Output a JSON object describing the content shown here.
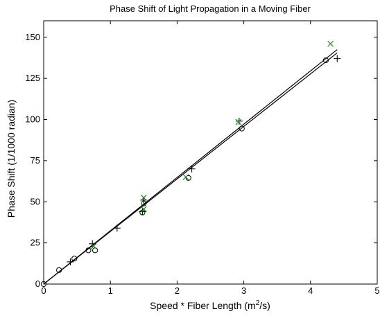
{
  "chart_data": {
    "type": "scatter",
    "title": "Phase Shift of Light Propagation in a Moving Fiber",
    "xlabel_main": "Speed * Fiber Length (m",
    "xlabel_sup": "2",
    "xlabel_tail": "/s)",
    "ylabel": "Phase Shift (1/1000 radian)",
    "xlim": [
      0,
      5
    ],
    "ylim": [
      0,
      160
    ],
    "xticks": [
      0,
      1,
      2,
      3,
      4,
      5
    ],
    "yticks": [
      0,
      25,
      50,
      75,
      100,
      125,
      150
    ],
    "grid": false,
    "series": [
      {
        "marker": "circle",
        "color": "#000000",
        "points": [
          [
            0,
            0
          ],
          [
            0.23,
            8.5
          ],
          [
            0.46,
            15.5
          ],
          [
            0.67,
            20.5
          ],
          [
            0.77,
            20.5
          ],
          [
            1.48,
            43.5
          ],
          [
            1.5,
            49
          ],
          [
            2.17,
            64.5
          ],
          [
            2.97,
            94.5
          ],
          [
            4.23,
            136
          ]
        ]
      },
      {
        "marker": "plus",
        "color": "#000000",
        "points": [
          [
            0.4,
            13.5
          ],
          [
            0.73,
            24.5
          ],
          [
            1.1,
            34
          ],
          [
            1.48,
            44
          ],
          [
            1.5,
            51
          ],
          [
            2.22,
            70
          ],
          [
            2.93,
            99
          ],
          [
            4.4,
            137
          ]
        ]
      },
      {
        "marker": "x",
        "color": "#1a8a1a",
        "points": [
          [
            0.75,
            23
          ],
          [
            1.5,
            45.5
          ],
          [
            1.5,
            52.5
          ],
          [
            2.13,
            65
          ],
          [
            2.92,
            98.5
          ],
          [
            4.3,
            146
          ]
        ]
      }
    ],
    "fit_lines": [
      {
        "color": "#000000",
        "x": [
          0,
          4.4
        ],
        "y": [
          0,
          142.5
        ]
      },
      {
        "color": "#000000",
        "x": [
          0,
          4.4
        ],
        "y": [
          0,
          140.5
        ]
      }
    ]
  }
}
